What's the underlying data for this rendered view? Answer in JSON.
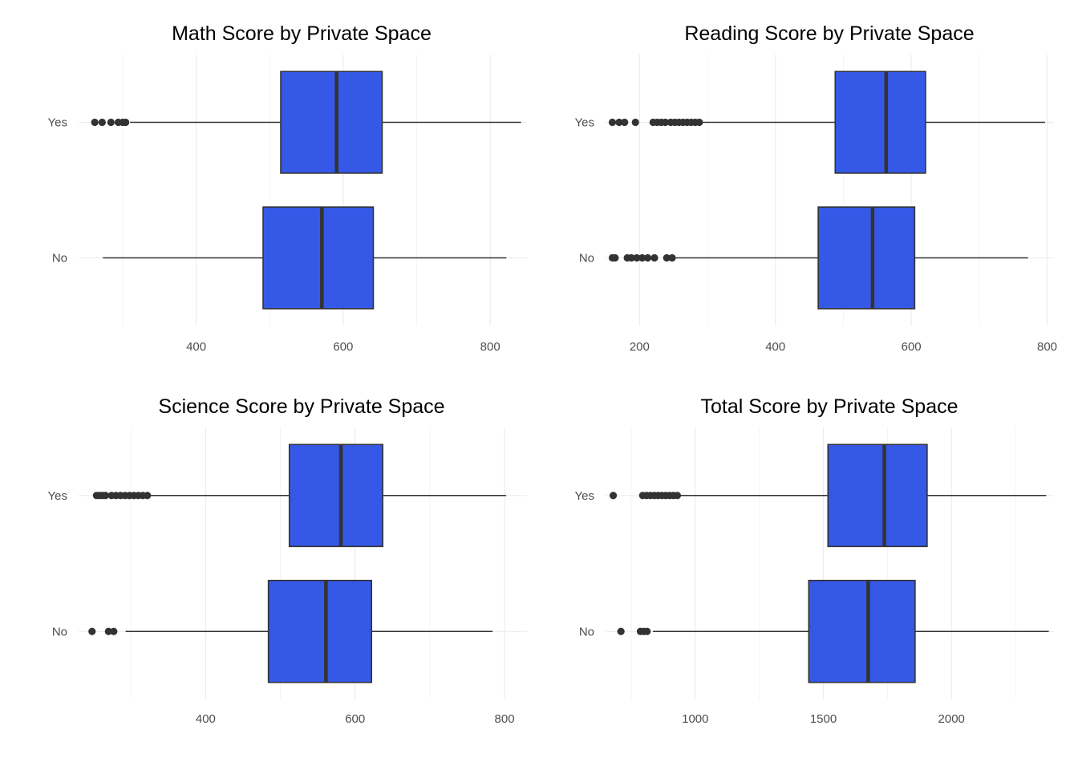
{
  "chart_data": [
    {
      "type": "boxplot",
      "title": "Math Score by Private Space",
      "categories": [
        "Yes",
        "No"
      ],
      "xlim": [
        240,
        850
      ],
      "xticks": [
        400,
        600,
        800
      ],
      "fill": "#3559e6",
      "grid": true,
      "boxes": [
        {
          "category": "Yes",
          "whisker_low": 310,
          "q1": 515,
          "median": 591,
          "q3": 653,
          "whisker_high": 842,
          "outliers": [
            262,
            272,
            284,
            294,
            300,
            304
          ]
        },
        {
          "category": "No",
          "whisker_low": 273,
          "q1": 491,
          "median": 571,
          "q3": 641,
          "whisker_high": 822,
          "outliers": []
        }
      ]
    },
    {
      "type": "boxplot",
      "title": "Reading Score by Private Space",
      "categories": [
        "Yes",
        "No"
      ],
      "xlim": [
        150,
        810
      ],
      "xticks": [
        200,
        400,
        600,
        800
      ],
      "fill": "#3559e6",
      "grid": true,
      "boxes": [
        {
          "category": "Yes",
          "whisker_low": 290,
          "q1": 488,
          "median": 563,
          "q3": 621,
          "whisker_high": 797,
          "outliers": [
            160,
            170,
            178,
            194,
            220,
            226,
            232,
            238,
            246,
            252,
            258,
            264,
            270,
            276,
            282,
            288
          ]
        },
        {
          "category": "No",
          "whisker_low": 253,
          "q1": 463,
          "median": 543,
          "q3": 605,
          "whisker_high": 772,
          "outliers": [
            160,
            164,
            182,
            188,
            196,
            204,
            212,
            222,
            240,
            248
          ]
        }
      ]
    },
    {
      "type": "boxplot",
      "title": "Science Score by Private Space",
      "categories": [
        "Yes",
        "No"
      ],
      "xlim": [
        230,
        830
      ],
      "xticks": [
        400,
        600,
        800
      ],
      "fill": "#3559e6",
      "grid": true,
      "boxes": [
        {
          "category": "Yes",
          "whisker_low": 325,
          "q1": 512,
          "median": 581,
          "q3": 637,
          "whisker_high": 802,
          "outliers": [
            254,
            258,
            262,
            266,
            274,
            280,
            286,
            292,
            298,
            304,
            310,
            316,
            322
          ]
        },
        {
          "category": "No",
          "whisker_low": 293,
          "q1": 484,
          "median": 561,
          "q3": 622,
          "whisker_high": 784,
          "outliers": [
            248,
            270,
            277
          ]
        }
      ]
    },
    {
      "type": "boxplot",
      "title": "Total Score by Private Space",
      "categories": [
        "Yes",
        "No"
      ],
      "xlim": [
        650,
        2400
      ],
      "xticks": [
        1000,
        1500,
        2000
      ],
      "fill": "#3559e6",
      "grid": true,
      "boxes": [
        {
          "category": "Yes",
          "whisker_low": 938,
          "q1": 1518,
          "median": 1738,
          "q3": 1905,
          "whisker_high": 2370,
          "outliers": [
            680,
            795,
            810,
            825,
            840,
            855,
            870,
            885,
            900,
            915,
            930
          ]
        },
        {
          "category": "No",
          "whisker_low": 835,
          "q1": 1443,
          "median": 1675,
          "q3": 1858,
          "whisker_high": 2380,
          "outliers": [
            710,
            786,
            800,
            812
          ]
        }
      ]
    }
  ]
}
